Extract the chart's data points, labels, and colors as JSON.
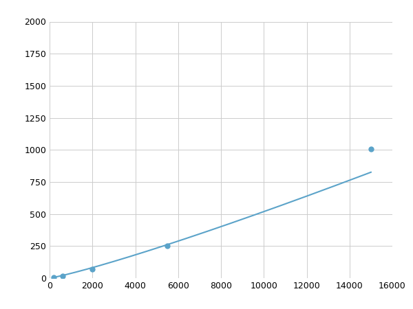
{
  "x_data": [
    200,
    600,
    2000,
    5500,
    15000
  ],
  "y_data": [
    8,
    15,
    70,
    250,
    1005
  ],
  "line_color": "#5ba3c9",
  "marker_color": "#5ba3c9",
  "marker_size": 5,
  "line_width": 1.5,
  "xlim": [
    0,
    16000
  ],
  "ylim": [
    0,
    2000
  ],
  "xticks": [
    0,
    2000,
    4000,
    6000,
    8000,
    10000,
    12000,
    14000,
    16000
  ],
  "yticks": [
    0,
    250,
    500,
    750,
    1000,
    1250,
    1500,
    1750,
    2000
  ],
  "grid_color": "#cccccc",
  "background_color": "#ffffff",
  "fig_width": 6.0,
  "fig_height": 4.5,
  "dpi": 100
}
